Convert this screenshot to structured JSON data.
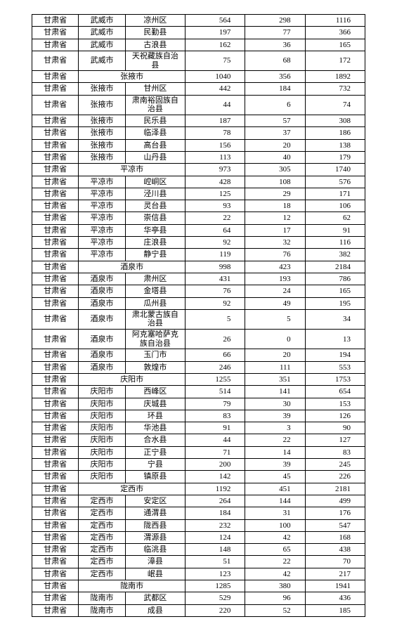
{
  "table": {
    "border_color": "#000000",
    "background_color": "#ffffff",
    "font_family": "SimSun",
    "font_size_pt": 11,
    "col_widths_pct": [
      14,
      14,
      18,
      18,
      18,
      18
    ],
    "col_align": [
      "center",
      "center",
      "center",
      "right",
      "right",
      "right"
    ],
    "rows": [
      {
        "cells": [
          {
            "t": "甘肃省"
          },
          {
            "t": "武威市"
          },
          {
            "t": "凉州区"
          },
          {
            "t": "564",
            "num": 1
          },
          {
            "t": "298",
            "num": 1
          },
          {
            "t": "1116",
            "num": 1
          }
        ]
      },
      {
        "cells": [
          {
            "t": "甘肃省"
          },
          {
            "t": "武威市"
          },
          {
            "t": "民勤县"
          },
          {
            "t": "197",
            "num": 1
          },
          {
            "t": "77",
            "num": 1
          },
          {
            "t": "366",
            "num": 1
          }
        ]
      },
      {
        "cells": [
          {
            "t": "甘肃省"
          },
          {
            "t": "武威市"
          },
          {
            "t": "古浪县"
          },
          {
            "t": "162",
            "num": 1
          },
          {
            "t": "36",
            "num": 1
          },
          {
            "t": "165",
            "num": 1
          }
        ]
      },
      {
        "cells": [
          {
            "t": "甘肃省"
          },
          {
            "t": "武威市"
          },
          {
            "t": "天祝藏族自治县",
            "ml": 1
          },
          {
            "t": "75",
            "num": 1
          },
          {
            "t": "68",
            "num": 1
          },
          {
            "t": "172",
            "num": 1
          }
        ]
      },
      {
        "cells": [
          {
            "t": "甘肃省"
          },
          {
            "t": "张掖市",
            "span": 2
          },
          {
            "t": "1040",
            "num": 1
          },
          {
            "t": "356",
            "num": 1
          },
          {
            "t": "1892",
            "num": 1
          }
        ]
      },
      {
        "cells": [
          {
            "t": "甘肃省"
          },
          {
            "t": "张掖市"
          },
          {
            "t": "甘州区"
          },
          {
            "t": "442",
            "num": 1
          },
          {
            "t": "184",
            "num": 1
          },
          {
            "t": "732",
            "num": 1
          }
        ]
      },
      {
        "cells": [
          {
            "t": "甘肃省"
          },
          {
            "t": "张掖市"
          },
          {
            "t": "肃南裕固族自治县",
            "ml": 1
          },
          {
            "t": "44",
            "num": 1
          },
          {
            "t": "6",
            "num": 1
          },
          {
            "t": "74",
            "num": 1
          }
        ]
      },
      {
        "cells": [
          {
            "t": "甘肃省"
          },
          {
            "t": "张掖市"
          },
          {
            "t": "民乐县"
          },
          {
            "t": "187",
            "num": 1
          },
          {
            "t": "57",
            "num": 1
          },
          {
            "t": "308",
            "num": 1
          }
        ]
      },
      {
        "cells": [
          {
            "t": "甘肃省"
          },
          {
            "t": "张掖市"
          },
          {
            "t": "临泽县"
          },
          {
            "t": "78",
            "num": 1
          },
          {
            "t": "37",
            "num": 1
          },
          {
            "t": "186",
            "num": 1
          }
        ]
      },
      {
        "cells": [
          {
            "t": "甘肃省"
          },
          {
            "t": "张掖市"
          },
          {
            "t": "高台县"
          },
          {
            "t": "156",
            "num": 1
          },
          {
            "t": "20",
            "num": 1
          },
          {
            "t": "138",
            "num": 1
          }
        ]
      },
      {
        "cells": [
          {
            "t": "甘肃省"
          },
          {
            "t": "张掖市"
          },
          {
            "t": "山丹县"
          },
          {
            "t": "113",
            "num": 1
          },
          {
            "t": "40",
            "num": 1
          },
          {
            "t": "179",
            "num": 1
          }
        ]
      },
      {
        "cells": [
          {
            "t": "甘肃省"
          },
          {
            "t": "平凉市",
            "span": 2
          },
          {
            "t": "973",
            "num": 1
          },
          {
            "t": "305",
            "num": 1
          },
          {
            "t": "1740",
            "num": 1
          }
        ]
      },
      {
        "cells": [
          {
            "t": "甘肃省"
          },
          {
            "t": "平凉市"
          },
          {
            "t": "崆峒区"
          },
          {
            "t": "428",
            "num": 1
          },
          {
            "t": "108",
            "num": 1
          },
          {
            "t": "576",
            "num": 1
          }
        ]
      },
      {
        "cells": [
          {
            "t": "甘肃省"
          },
          {
            "t": "平凉市"
          },
          {
            "t": "泾川县"
          },
          {
            "t": "125",
            "num": 1
          },
          {
            "t": "29",
            "num": 1
          },
          {
            "t": "171",
            "num": 1
          }
        ]
      },
      {
        "cells": [
          {
            "t": "甘肃省"
          },
          {
            "t": "平凉市"
          },
          {
            "t": "灵台县"
          },
          {
            "t": "93",
            "num": 1
          },
          {
            "t": "18",
            "num": 1
          },
          {
            "t": "106",
            "num": 1
          }
        ]
      },
      {
        "cells": [
          {
            "t": "甘肃省"
          },
          {
            "t": "平凉市"
          },
          {
            "t": "崇信县"
          },
          {
            "t": "22",
            "num": 1
          },
          {
            "t": "12",
            "num": 1
          },
          {
            "t": "62",
            "num": 1
          }
        ]
      },
      {
        "cells": [
          {
            "t": "甘肃省"
          },
          {
            "t": "平凉市"
          },
          {
            "t": "华亭县"
          },
          {
            "t": "64",
            "num": 1
          },
          {
            "t": "17",
            "num": 1
          },
          {
            "t": "91",
            "num": 1
          }
        ]
      },
      {
        "cells": [
          {
            "t": "甘肃省"
          },
          {
            "t": "平凉市"
          },
          {
            "t": "庄浪县"
          },
          {
            "t": "92",
            "num": 1
          },
          {
            "t": "32",
            "num": 1
          },
          {
            "t": "116",
            "num": 1
          }
        ]
      },
      {
        "cells": [
          {
            "t": "甘肃省"
          },
          {
            "t": "平凉市"
          },
          {
            "t": "静宁县"
          },
          {
            "t": "119",
            "num": 1
          },
          {
            "t": "76",
            "num": 1
          },
          {
            "t": "382",
            "num": 1
          }
        ]
      },
      {
        "cells": [
          {
            "t": "甘肃省"
          },
          {
            "t": "酒泉市",
            "span": 2
          },
          {
            "t": "998",
            "num": 1
          },
          {
            "t": "423",
            "num": 1
          },
          {
            "t": "2184",
            "num": 1
          }
        ]
      },
      {
        "cells": [
          {
            "t": "甘肃省"
          },
          {
            "t": "酒泉市"
          },
          {
            "t": "肃州区"
          },
          {
            "t": "431",
            "num": 1
          },
          {
            "t": "193",
            "num": 1
          },
          {
            "t": "786",
            "num": 1
          }
        ]
      },
      {
        "cells": [
          {
            "t": "甘肃省"
          },
          {
            "t": "酒泉市"
          },
          {
            "t": "金塔县"
          },
          {
            "t": "76",
            "num": 1
          },
          {
            "t": "24",
            "num": 1
          },
          {
            "t": "165",
            "num": 1
          }
        ]
      },
      {
        "cells": [
          {
            "t": "甘肃省"
          },
          {
            "t": "酒泉市"
          },
          {
            "t": "瓜州县"
          },
          {
            "t": "92",
            "num": 1
          },
          {
            "t": "49",
            "num": 1
          },
          {
            "t": "195",
            "num": 1
          }
        ]
      },
      {
        "cells": [
          {
            "t": "甘肃省"
          },
          {
            "t": "酒泉市"
          },
          {
            "t": "肃北蒙古族自治县",
            "ml": 1
          },
          {
            "t": "5",
            "num": 1
          },
          {
            "t": "5",
            "num": 1
          },
          {
            "t": "34",
            "num": 1
          }
        ]
      },
      {
        "cells": [
          {
            "t": "甘肃省"
          },
          {
            "t": "酒泉市"
          },
          {
            "t": "阿克塞哈萨克族自治县",
            "ml": 1
          },
          {
            "t": "26",
            "num": 1
          },
          {
            "t": "0",
            "num": 1
          },
          {
            "t": "13",
            "num": 1
          }
        ]
      },
      {
        "cells": [
          {
            "t": "甘肃省"
          },
          {
            "t": "酒泉市"
          },
          {
            "t": "玉门市"
          },
          {
            "t": "66",
            "num": 1
          },
          {
            "t": "20",
            "num": 1
          },
          {
            "t": "194",
            "num": 1
          }
        ]
      },
      {
        "cells": [
          {
            "t": "甘肃省"
          },
          {
            "t": "酒泉市"
          },
          {
            "t": "敦煌市"
          },
          {
            "t": "246",
            "num": 1
          },
          {
            "t": "111",
            "num": 1
          },
          {
            "t": "553",
            "num": 1
          }
        ]
      },
      {
        "cells": [
          {
            "t": "甘肃省"
          },
          {
            "t": "庆阳市",
            "span": 2
          },
          {
            "t": "1255",
            "num": 1
          },
          {
            "t": "351",
            "num": 1
          },
          {
            "t": "1753",
            "num": 1
          }
        ]
      },
      {
        "cells": [
          {
            "t": "甘肃省"
          },
          {
            "t": "庆阳市"
          },
          {
            "t": "西峰区"
          },
          {
            "t": "514",
            "num": 1
          },
          {
            "t": "141",
            "num": 1
          },
          {
            "t": "654",
            "num": 1
          }
        ]
      },
      {
        "cells": [
          {
            "t": "甘肃省"
          },
          {
            "t": "庆阳市"
          },
          {
            "t": "庆城县"
          },
          {
            "t": "79",
            "num": 1
          },
          {
            "t": "30",
            "num": 1
          },
          {
            "t": "153",
            "num": 1
          }
        ]
      },
      {
        "cells": [
          {
            "t": "甘肃省"
          },
          {
            "t": "庆阳市"
          },
          {
            "t": "环县"
          },
          {
            "t": "83",
            "num": 1
          },
          {
            "t": "39",
            "num": 1
          },
          {
            "t": "126",
            "num": 1
          }
        ]
      },
      {
        "cells": [
          {
            "t": "甘肃省"
          },
          {
            "t": "庆阳市"
          },
          {
            "t": "华池县"
          },
          {
            "t": "91",
            "num": 1
          },
          {
            "t": "3",
            "num": 1
          },
          {
            "t": "90",
            "num": 1
          }
        ]
      },
      {
        "cells": [
          {
            "t": "甘肃省"
          },
          {
            "t": "庆阳市"
          },
          {
            "t": "合水县"
          },
          {
            "t": "44",
            "num": 1
          },
          {
            "t": "22",
            "num": 1
          },
          {
            "t": "127",
            "num": 1
          }
        ]
      },
      {
        "cells": [
          {
            "t": "甘肃省"
          },
          {
            "t": "庆阳市"
          },
          {
            "t": "正宁县"
          },
          {
            "t": "71",
            "num": 1
          },
          {
            "t": "14",
            "num": 1
          },
          {
            "t": "83",
            "num": 1
          }
        ]
      },
      {
        "cells": [
          {
            "t": "甘肃省"
          },
          {
            "t": "庆阳市"
          },
          {
            "t": "宁县"
          },
          {
            "t": "200",
            "num": 1
          },
          {
            "t": "39",
            "num": 1
          },
          {
            "t": "245",
            "num": 1
          }
        ]
      },
      {
        "cells": [
          {
            "t": "甘肃省"
          },
          {
            "t": "庆阳市"
          },
          {
            "t": "镇原县"
          },
          {
            "t": "142",
            "num": 1
          },
          {
            "t": "45",
            "num": 1
          },
          {
            "t": "226",
            "num": 1
          }
        ]
      },
      {
        "cells": [
          {
            "t": "甘肃省"
          },
          {
            "t": "定西市",
            "span": 2
          },
          {
            "t": "1192",
            "num": 1
          },
          {
            "t": "451",
            "num": 1
          },
          {
            "t": "2181",
            "num": 1
          }
        ]
      },
      {
        "cells": [
          {
            "t": "甘肃省"
          },
          {
            "t": "定西市"
          },
          {
            "t": "安定区"
          },
          {
            "t": "264",
            "num": 1
          },
          {
            "t": "144",
            "num": 1
          },
          {
            "t": "499",
            "num": 1
          }
        ]
      },
      {
        "cells": [
          {
            "t": "甘肃省"
          },
          {
            "t": "定西市"
          },
          {
            "t": "通渭县"
          },
          {
            "t": "184",
            "num": 1
          },
          {
            "t": "31",
            "num": 1
          },
          {
            "t": "176",
            "num": 1
          }
        ]
      },
      {
        "cells": [
          {
            "t": "甘肃省"
          },
          {
            "t": "定西市"
          },
          {
            "t": "陇西县"
          },
          {
            "t": "232",
            "num": 1
          },
          {
            "t": "100",
            "num": 1
          },
          {
            "t": "547",
            "num": 1
          }
        ]
      },
      {
        "cells": [
          {
            "t": "甘肃省"
          },
          {
            "t": "定西市"
          },
          {
            "t": "渭源县"
          },
          {
            "t": "124",
            "num": 1
          },
          {
            "t": "42",
            "num": 1
          },
          {
            "t": "168",
            "num": 1
          }
        ]
      },
      {
        "cells": [
          {
            "t": "甘肃省"
          },
          {
            "t": "定西市"
          },
          {
            "t": "临洮县"
          },
          {
            "t": "148",
            "num": 1
          },
          {
            "t": "65",
            "num": 1
          },
          {
            "t": "438",
            "num": 1
          }
        ]
      },
      {
        "cells": [
          {
            "t": "甘肃省"
          },
          {
            "t": "定西市"
          },
          {
            "t": "漳县"
          },
          {
            "t": "51",
            "num": 1
          },
          {
            "t": "22",
            "num": 1
          },
          {
            "t": "70",
            "num": 1
          }
        ]
      },
      {
        "cells": [
          {
            "t": "甘肃省"
          },
          {
            "t": "定西市"
          },
          {
            "t": "岷县"
          },
          {
            "t": "123",
            "num": 1
          },
          {
            "t": "42",
            "num": 1
          },
          {
            "t": "217",
            "num": 1
          }
        ]
      },
      {
        "cells": [
          {
            "t": "甘肃省"
          },
          {
            "t": "陇南市",
            "span": 2
          },
          {
            "t": "1285",
            "num": 1
          },
          {
            "t": "380",
            "num": 1
          },
          {
            "t": "1941",
            "num": 1
          }
        ]
      },
      {
        "cells": [
          {
            "t": "甘肃省"
          },
          {
            "t": "陇南市"
          },
          {
            "t": "武都区"
          },
          {
            "t": "529",
            "num": 1
          },
          {
            "t": "96",
            "num": 1
          },
          {
            "t": "436",
            "num": 1
          }
        ]
      },
      {
        "cells": [
          {
            "t": "甘肃省"
          },
          {
            "t": "陇南市"
          },
          {
            "t": "成县"
          },
          {
            "t": "220",
            "num": 1
          },
          {
            "t": "52",
            "num": 1
          },
          {
            "t": "185",
            "num": 1
          }
        ]
      }
    ]
  }
}
